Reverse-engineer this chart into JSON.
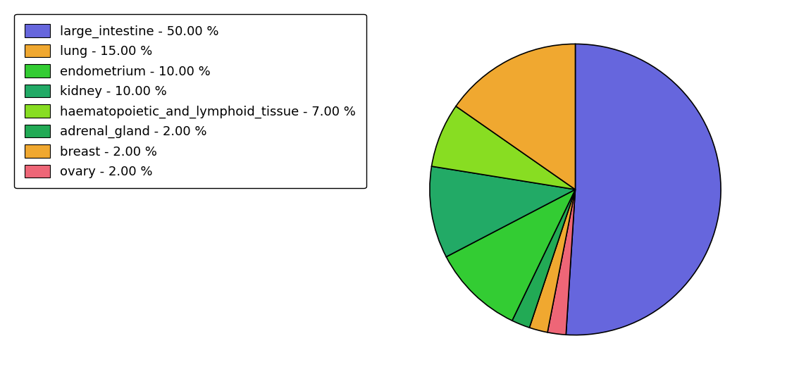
{
  "labels": [
    "large_intestine - 50.00 %",
    "lung - 15.00 %",
    "endometrium - 10.00 %",
    "kidney - 10.00 %",
    "haematopoietic_and_lymphoid_tissue - 7.00 %",
    "adrenal_gland - 2.00 %",
    "breast - 2.00 %",
    "ovary - 2.00 %"
  ],
  "sizes": [
    50,
    15,
    10,
    10,
    7,
    2,
    2,
    2
  ],
  "pie_colors": [
    "#6666dd",
    "#f0a830",
    "#33cc33",
    "#22aa66",
    "#88dd22",
    "#22aa55",
    "#f0a830",
    "#ee6677"
  ],
  "legend_colors": [
    "#6666dd",
    "#f0a830",
    "#33cc33",
    "#22aa66",
    "#88dd22",
    "#22aa55",
    "#f0a830",
    "#ee6677"
  ],
  "startangle": 90,
  "background_color": "#ffffff",
  "legend_fontsize": 13,
  "figsize": [
    11.34,
    5.38
  ],
  "dpi": 100
}
